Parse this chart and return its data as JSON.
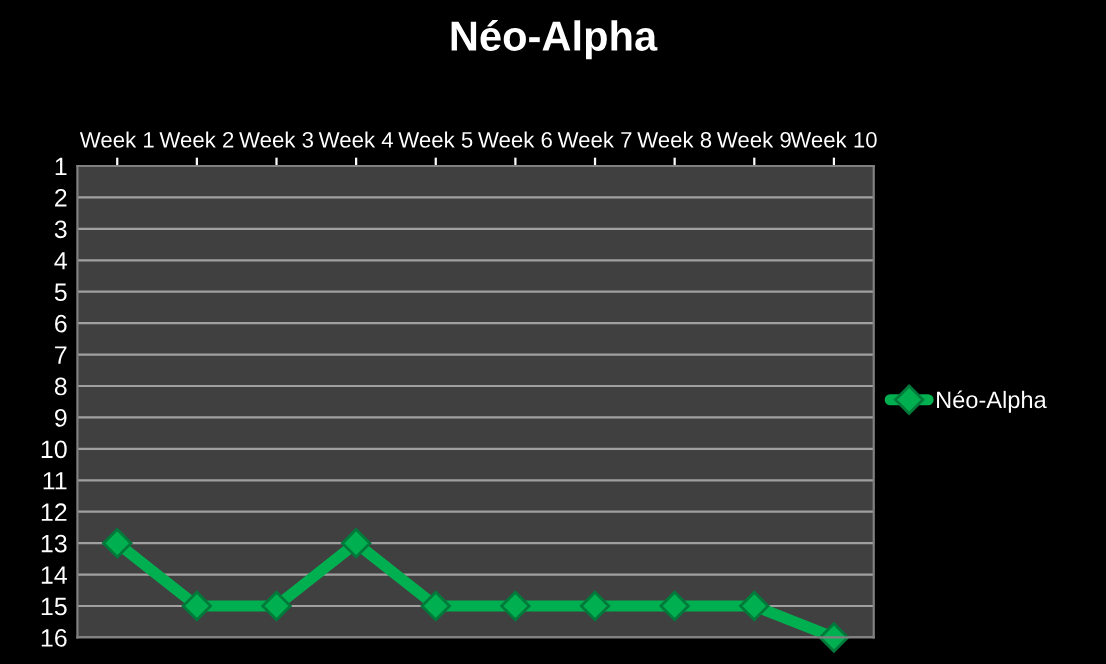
{
  "chart_data": {
    "type": "line",
    "title": "Néo-Alpha",
    "categories": [
      "Week 1",
      "Week 2",
      "Week 3",
      "Week 4",
      "Week 5",
      "Week 6",
      "Week 7",
      "Week 8",
      "Week 9",
      "Week 10"
    ],
    "series": [
      {
        "name": "Néo-Alpha",
        "color": "#00b050",
        "values": [
          13,
          15,
          15,
          13,
          15,
          15,
          15,
          15,
          15,
          16
        ]
      }
    ],
    "ylim": [
      16,
      1
    ],
    "yticks": [
      1,
      2,
      3,
      4,
      5,
      6,
      7,
      8,
      9,
      10,
      11,
      12,
      13,
      14,
      15,
      16
    ],
    "grid": "y",
    "legend": "right",
    "marker": "diamond",
    "line_style": "solid"
  }
}
